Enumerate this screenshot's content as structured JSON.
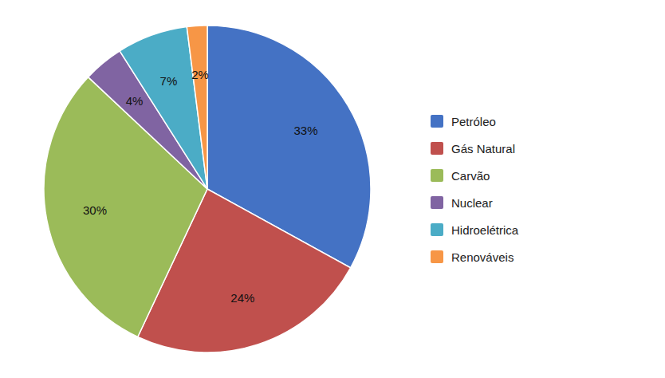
{
  "chart_data": {
    "type": "pie",
    "categories": [
      "Petróleo",
      "Gás Natural",
      "Carvão",
      "Nuclear",
      "Hidroelétrica",
      "Renováveis"
    ],
    "values": [
      33,
      24,
      30,
      4,
      7,
      2
    ],
    "value_labels": [
      "33%",
      "24%",
      "30%",
      "4%",
      "7%",
      "2%"
    ],
    "colors": [
      "#4472C4",
      "#C0504D",
      "#9BBB59",
      "#8064A2",
      "#4BACC6",
      "#F79646"
    ],
    "data_labels": true,
    "legend": "right"
  }
}
